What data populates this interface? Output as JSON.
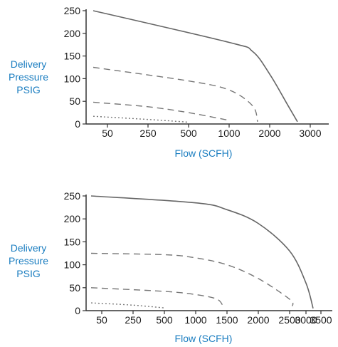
{
  "chart_data": [
    {
      "type": "line",
      "ylabel": [
        "Delivery",
        "Pressure",
        "PSIG"
      ],
      "xlabel": "Flow (SCFH)",
      "yticks": [
        "250",
        "200",
        "150",
        "100",
        "50",
        "0"
      ],
      "xticks": [
        "50",
        "250",
        "500",
        "1000",
        "2000",
        "3000"
      ],
      "ylim": [
        0,
        250
      ],
      "grid": false,
      "series": [
        {
          "style": "solid",
          "x": [
            "start",
            "1000",
            "1500",
            "2000",
            "2500",
            "2700"
          ],
          "y": [
            250,
            180,
            160,
            110,
            40,
            5
          ]
        },
        {
          "style": "dashed",
          "x": [
            "start",
            "500",
            "1000",
            "1500",
            "1650"
          ],
          "y": [
            125,
            95,
            75,
            40,
            5
          ]
        },
        {
          "style": "dashed",
          "x": [
            "start",
            "250",
            "500",
            "1000"
          ],
          "y": [
            48,
            38,
            25,
            8
          ]
        },
        {
          "style": "dotted",
          "x": [
            "start",
            "250",
            "500"
          ],
          "y": [
            17,
            10,
            4
          ]
        }
      ]
    },
    {
      "type": "line",
      "ylabel": [
        "Delivery",
        "Pressure",
        "PSIG"
      ],
      "xlabel": "Flow (SCFH)",
      "yticks": [
        "250",
        "200",
        "150",
        "100",
        "50",
        "0"
      ],
      "xticks": [
        "50",
        "250",
        "500",
        "1000",
        "1500",
        "2000",
        "2500",
        "3000",
        "3500"
      ],
      "ylim": [
        0,
        250
      ],
      "grid": false,
      "series": [
        {
          "style": "solid",
          "x": [
            "start",
            "1000",
            "1500",
            "2000",
            "2500",
            "3000",
            "3400"
          ],
          "y": [
            250,
            235,
            220,
            190,
            130,
            60,
            5
          ]
        },
        {
          "style": "dashed",
          "x": [
            "start",
            "500",
            "1000",
            "1500",
            "2000",
            "2500",
            "2550"
          ],
          "y": [
            125,
            122,
            115,
            100,
            70,
            25,
            10
          ]
        },
        {
          "style": "dashed",
          "x": [
            "start",
            "500",
            "1000",
            "1300",
            "1450"
          ],
          "y": [
            50,
            42,
            35,
            25,
            8
          ]
        },
        {
          "style": "dotted",
          "x": [
            "start",
            "250",
            "500"
          ],
          "y": [
            17,
            12,
            6
          ]
        }
      ]
    }
  ]
}
